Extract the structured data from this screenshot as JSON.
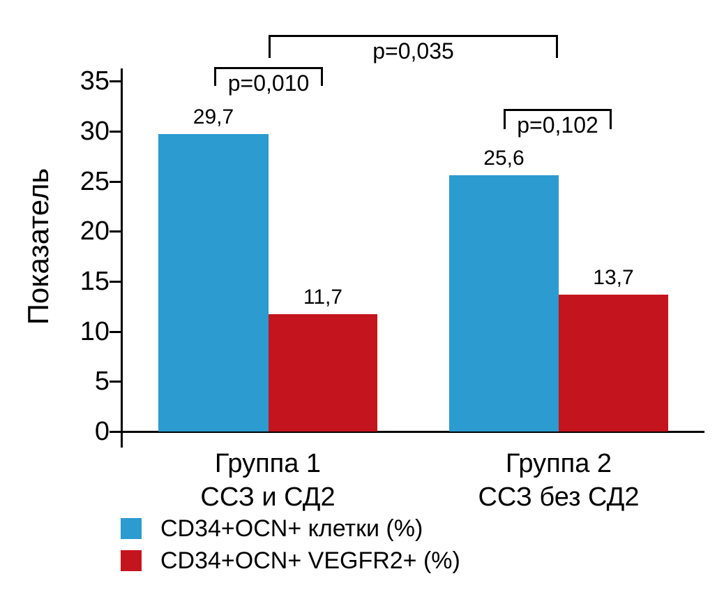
{
  "figure": {
    "background": "#ffffff",
    "text_color": "#000000",
    "axis_color": "#000000"
  },
  "chart_data": {
    "type": "bar",
    "title": "",
    "xlabel": "",
    "ylabel": "Показатель",
    "ylim": [
      0,
      35
    ],
    "yticks": [
      0,
      5,
      10,
      15,
      20,
      25,
      30,
      35
    ],
    "ytick_labels": [
      "0",
      "5",
      "10",
      "15",
      "20",
      "25",
      "30",
      "35"
    ],
    "grid": false,
    "legend_position": "bottom-left",
    "categories": [
      {
        "line1": "Группа 1",
        "line2": "ССЗ и СД2"
      },
      {
        "line1": "Группа 2",
        "line2": "ССЗ без СД2"
      }
    ],
    "series": [
      {
        "name": "CD34+OCN+ клетки (%)",
        "color": "#2B9BD0",
        "values": [
          29.7,
          25.6
        ],
        "value_labels": [
          "29,7",
          "25,6"
        ]
      },
      {
        "name": "CD34+OCN+ VEGFR2+ (%)",
        "color": "#C4141D",
        "values": [
          11.7,
          13.7
        ],
        "value_labels": [
          "11,7",
          "13,7"
        ]
      }
    ],
    "significance_brackets": [
      {
        "label": "p=0,010",
        "span": "group1-blue-vs-group1-red"
      },
      {
        "label": "p=0,035",
        "span": "group1-vs-group2"
      },
      {
        "label": "p=0,102",
        "span": "group2-blue-vs-group2-red"
      }
    ]
  }
}
